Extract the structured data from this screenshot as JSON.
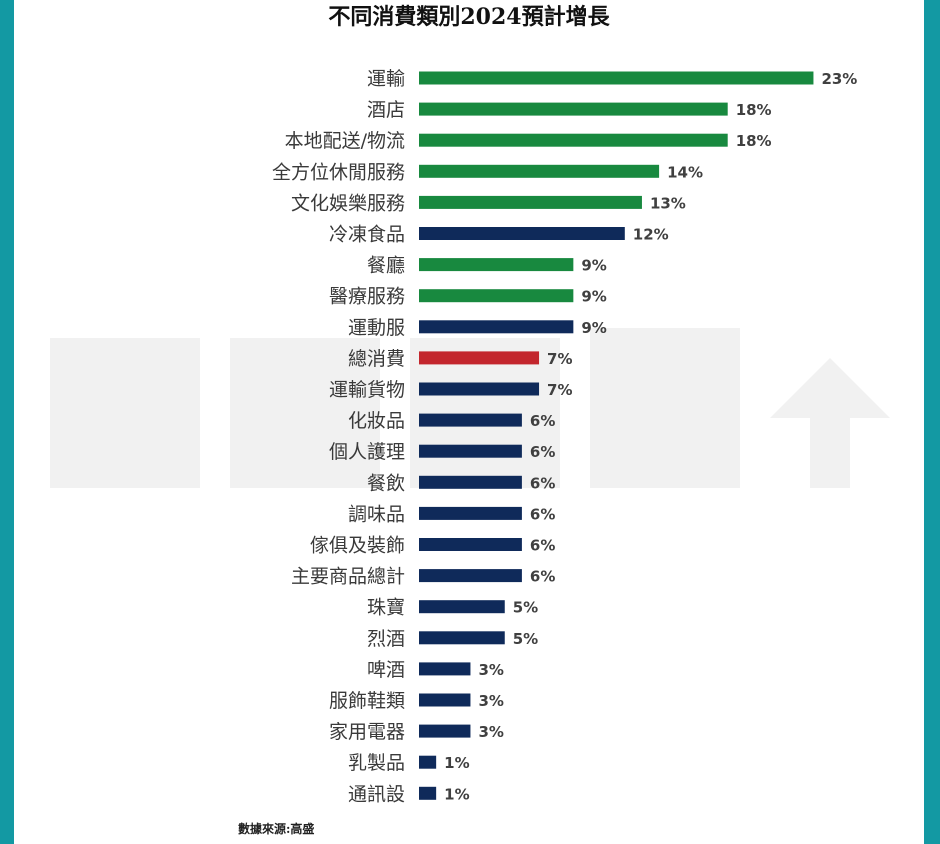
{
  "title": "不同消費類別2024預計增長",
  "source": "數據來源:高盛",
  "colors": {
    "green": "#18893f",
    "navy": "#0f2a5a",
    "red": "#c3262d",
    "border": "#1399a3"
  },
  "chart_data": {
    "type": "bar",
    "orientation": "horizontal",
    "title": "不同消費類別2024預計增長",
    "xlabel": "",
    "ylabel": "",
    "xlim": [
      0,
      23
    ],
    "grid": false,
    "legend": "none",
    "categories": [
      "運輸",
      "酒店",
      "本地配送/物流",
      "全方位休閒服務",
      "文化娛樂服務",
      "冷凍食品",
      "餐廳",
      "醫療服務",
      "運動服",
      "總消費",
      "運輸貨物",
      "化妝品",
      "個人護理",
      "餐飲",
      "調味品",
      "傢俱及裝飾",
      "主要商品總計",
      "珠寶",
      "烈酒",
      "啤酒",
      "服飾鞋類",
      "家用電器",
      "乳製品",
      "通訊設"
    ],
    "values": [
      23,
      18,
      18,
      14,
      13,
      12,
      9,
      9,
      9,
      7,
      7,
      6,
      6,
      6,
      6,
      6,
      6,
      5,
      5,
      3,
      3,
      3,
      1,
      1
    ],
    "value_labels": [
      "23%",
      "18%",
      "18%",
      "14%",
      "13%",
      "12%",
      "9%",
      "9%",
      "9%",
      "7%",
      "7%",
      "6%",
      "6%",
      "6%",
      "6%",
      "6%",
      "6%",
      "5%",
      "5%",
      "3%",
      "3%",
      "3%",
      "1%",
      "1%"
    ],
    "bar_colors": [
      "green",
      "green",
      "green",
      "green",
      "green",
      "navy",
      "green",
      "green",
      "navy",
      "red",
      "navy",
      "navy",
      "navy",
      "navy",
      "navy",
      "navy",
      "navy",
      "navy",
      "navy",
      "navy",
      "navy",
      "navy",
      "navy",
      "navy"
    ]
  }
}
